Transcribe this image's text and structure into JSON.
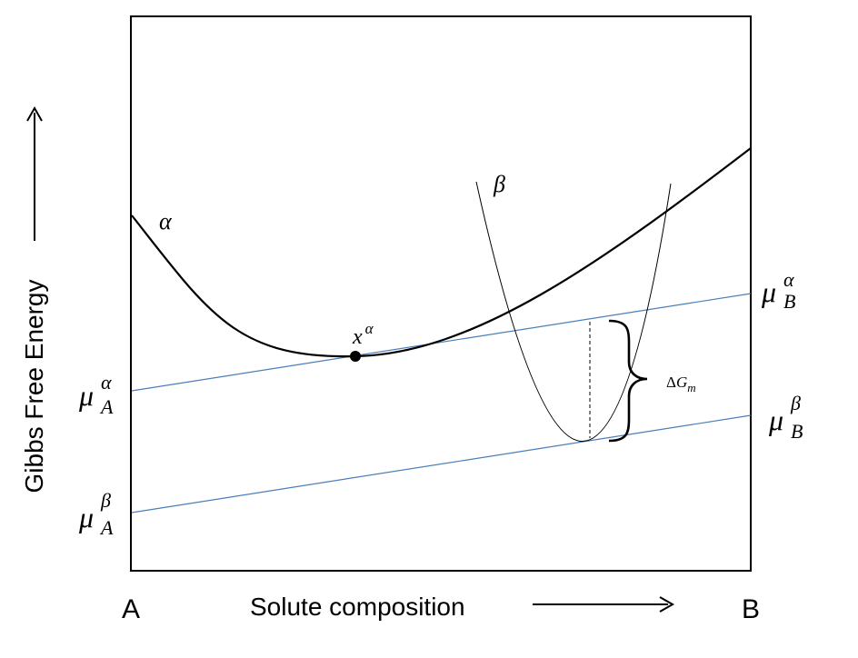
{
  "axes": {
    "y_label": "Gibbs Free Energy",
    "x_label": "Solute composition",
    "x_start": "A",
    "x_end": "B"
  },
  "curves": {
    "alpha_label": "α",
    "beta_label": "β"
  },
  "point": {
    "base": "x",
    "sup": "α"
  },
  "chemical_potentials": {
    "mu_A_alpha": {
      "base": "μ",
      "sub": "A",
      "sup": "α"
    },
    "mu_A_beta": {
      "base": "μ",
      "sub": "A",
      "sup": "β"
    },
    "mu_B_alpha": {
      "base": "μ",
      "sub": "B",
      "sup": "α"
    },
    "mu_B_beta": {
      "base": "μ",
      "sub": "B",
      "sup": "β"
    }
  },
  "driving_force": {
    "delta": "Δ",
    "G": "G",
    "sub": "m"
  },
  "colors": {
    "tangent_line": "#4a7ebb",
    "curve": "#000000"
  }
}
